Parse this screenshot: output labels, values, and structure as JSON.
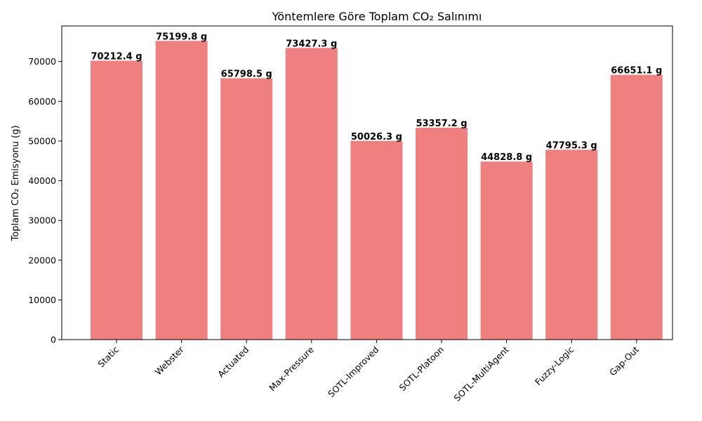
{
  "chart_data": {
    "type": "bar",
    "title": "Yöntemlere Göre Toplam CO₂ Salınımı",
    "xlabel": "",
    "ylabel": "Toplam CO₂ Emisyonu (g)",
    "categories": [
      "Static",
      "Webster",
      "Actuated",
      "Max-Pressure",
      "SOTL-Improved",
      "SOTL-Platoon",
      "SOTL-MultiAgent",
      "Fuzzy-Logic",
      "Gap-Out"
    ],
    "values": [
      70212.4,
      75199.8,
      65798.5,
      73427.3,
      50026.3,
      53357.2,
      44828.8,
      47795.3,
      66651.1
    ],
    "data_labels": [
      "70212.4 g",
      "75199.8 g",
      "65798.5 g",
      "73427.3 g",
      "50026.3 g",
      "53357.2 g",
      "44828.8 g",
      "47795.3 g",
      "66651.1 g"
    ],
    "ylim": [
      0,
      78960
    ],
    "yticks": [
      0,
      10000,
      20000,
      30000,
      40000,
      50000,
      60000,
      70000
    ],
    "ytick_labels": [
      "0",
      "10000",
      "20000",
      "30000",
      "40000",
      "50000",
      "60000",
      "70000"
    ],
    "bar_color": "#f08080",
    "grid": false,
    "legend": "none"
  }
}
